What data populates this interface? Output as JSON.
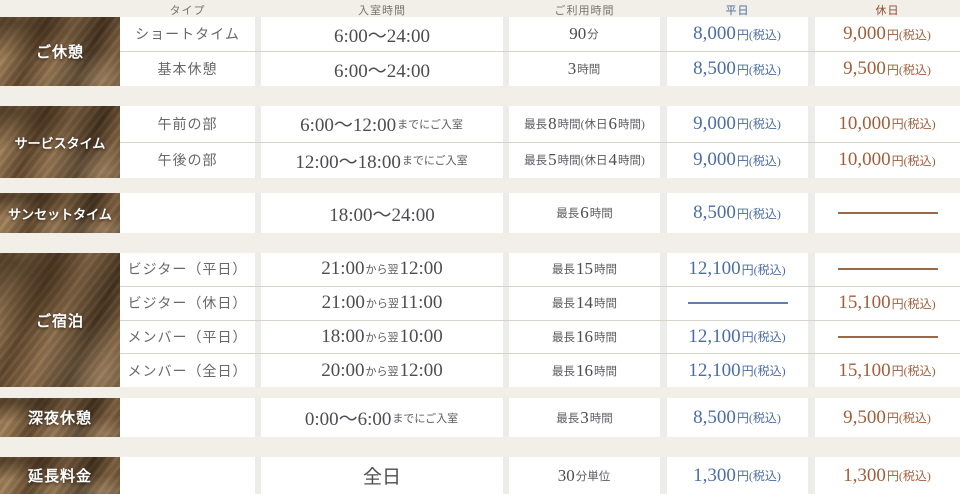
{
  "table": {
    "headers": [
      {
        "key": "type",
        "label": "タイプ"
      },
      {
        "key": "entry",
        "label": "入室時間"
      },
      {
        "key": "usage",
        "label": "ご利用時間"
      },
      {
        "key": "weekday",
        "label": "平日"
      },
      {
        "key": "holiday",
        "label": "休日"
      }
    ],
    "sections": [
      {
        "category": "ご休憩",
        "rows": [
          {
            "type": "ショートタイム",
            "entry": "6:00〜24:00",
            "usage": "90分",
            "weekday": "8,000円(税込)",
            "holiday": "9,000円(税込)"
          },
          {
            "type": "基本休憩",
            "entry": "6:00〜24:00",
            "usage": "3時間",
            "weekday": "8,500円(税込)",
            "holiday": "9,500円(税込)"
          }
        ]
      },
      {
        "category": "サービスタイム",
        "rows": [
          {
            "type": "午前の部",
            "entry": "6:00〜12:00までにご入室",
            "usage": "最長8時間(休日6時間)",
            "weekday": "9,000円(税込)",
            "holiday": "10,000円(税込)"
          },
          {
            "type": "午後の部",
            "entry": "12:00〜18:00までにご入室",
            "usage": "最長5時間(休日4時間)",
            "weekday": "9,000円(税込)",
            "holiday": "10,000円(税込)"
          }
        ]
      },
      {
        "category": "サンセットタイム",
        "rows": [
          {
            "type": "",
            "entry": "18:00〜24:00",
            "usage": "最長6時間",
            "weekday": "8,500円(税込)",
            "holiday": null
          }
        ]
      },
      {
        "category": "ご宿泊",
        "rows": [
          {
            "type": "ビジター（平日）",
            "entry": "21:00から翌12:00",
            "usage": "最長15時間",
            "weekday": "12,100円(税込)",
            "holiday": null
          },
          {
            "type": "ビジター（休日）",
            "entry": "21:00から翌11:00",
            "usage": "最長14時間",
            "weekday": null,
            "holiday": "15,100円(税込)"
          },
          {
            "type": "メンバー（平日）",
            "entry": "18:00から翌10:00",
            "usage": "最長16時間",
            "weekday": "12,100円(税込)",
            "holiday": null
          },
          {
            "type": "メンバー（全日）",
            "entry": "20:00から翌12:00",
            "usage": "最長16時間",
            "weekday": "12,100円(税込)",
            "holiday": "15,100円(税込)"
          }
        ]
      },
      {
        "category": "深夜休憩",
        "rows": [
          {
            "type": "",
            "entry": "0:00〜6:00までにご入室",
            "usage": "最長3時間",
            "weekday": "8,500円(税込)",
            "holiday": "9,500円(税込)"
          }
        ]
      },
      {
        "category": "延長料金",
        "rows": [
          {
            "type": "",
            "entry": "全日",
            "usage": "30分単位",
            "weekday": "1,300円(税込)",
            "holiday": "1,300円(税込)"
          }
        ]
      }
    ]
  },
  "colors": {
    "background": "#f2efe8",
    "cell_background": "#ffffff",
    "gutter": "#ececea",
    "divider": "#d8d3ca",
    "header_text": "#77756e",
    "cell_text": "#55555a",
    "weekday_accent": "#4a6b9c",
    "holiday_accent": "#8c4c30",
    "weekday_price": "#4b6da6",
    "holiday_price": "#a15e3b",
    "weekday_dash": "#5f7fae",
    "holiday_dash": "#9a6848",
    "tile_text": "#ffffff"
  }
}
